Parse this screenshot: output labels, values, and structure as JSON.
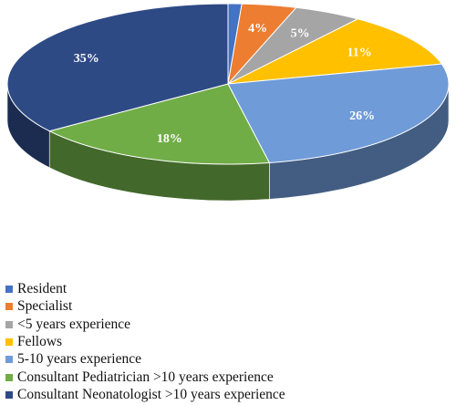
{
  "chart_data": {
    "type": "pie",
    "title": "",
    "slices": [
      {
        "label": "Resident",
        "value": 1,
        "data_label": "",
        "color": "#4472C4"
      },
      {
        "label": "Specialist",
        "value": 4,
        "data_label": "4%",
        "color": "#ED7D31"
      },
      {
        "label": "<5 years experience",
        "value": 5,
        "data_label": "5%",
        "color": "#A5A5A5"
      },
      {
        "label": "Fellows",
        "value": 11,
        "data_label": "11%",
        "color": "#FFC000"
      },
      {
        "label": "5-10 years experience",
        "value": 26,
        "data_label": "26%",
        "color": "#6F9BD8"
      },
      {
        "label": "Consultant Pediatrician >10 years experience",
        "value": 18,
        "data_label": "18%",
        "color": "#70AD47"
      },
      {
        "label": "Consultant Neonatologist  >10 years experience",
        "value": 35,
        "data_label": "35%",
        "color": "#2E4A85"
      }
    ],
    "legend_position": "bottom-left",
    "style": "3d"
  }
}
